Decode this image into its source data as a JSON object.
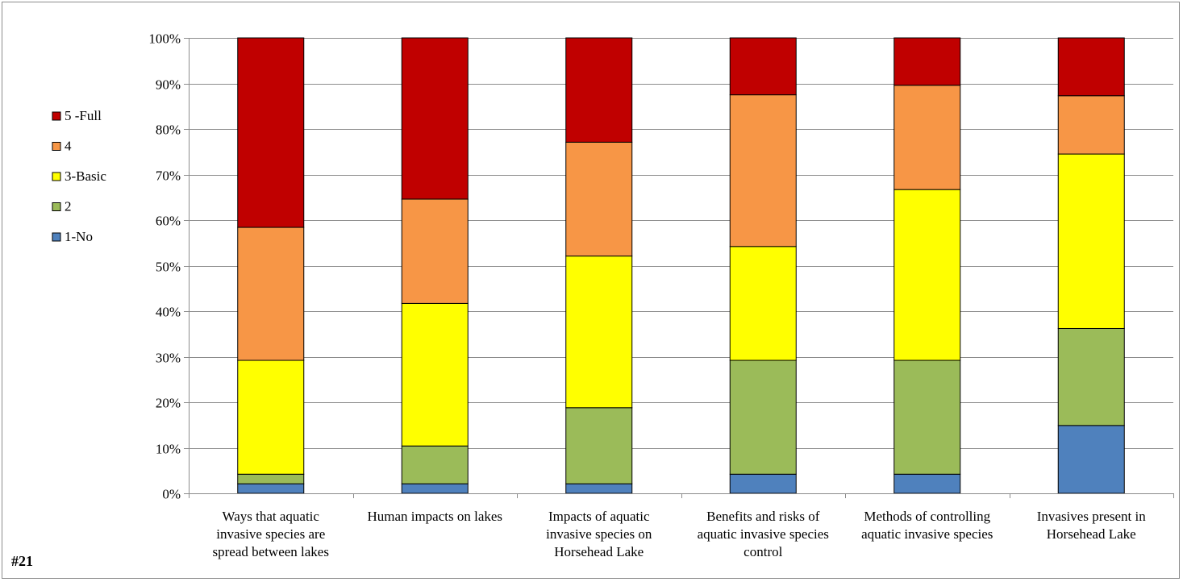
{
  "figure_number": "#21",
  "chart_data": {
    "type": "bar",
    "stacked": true,
    "percent_stacked": true,
    "categories": [
      [
        "Ways that aquatic",
        "invasive species are",
        "spread between lakes"
      ],
      [
        "Human impacts on lakes"
      ],
      [
        "Impacts of aquatic",
        "invasive species on",
        "Horsehead Lake"
      ],
      [
        "Benefits and risks of",
        "aquatic invasive species",
        "control"
      ],
      [
        "Methods of controlling",
        "aquatic invasive species"
      ],
      [
        "Invasives present in",
        "Horsehead Lake"
      ]
    ],
    "series": [
      {
        "name": "1-No",
        "color": "#4f81bd",
        "values": [
          2.1,
          2.1,
          2.1,
          4.2,
          4.2,
          14.9
        ]
      },
      {
        "name": "2",
        "color": "#9bbb59",
        "values": [
          2.1,
          8.3,
          16.7,
          25.0,
          25.0,
          21.3
        ]
      },
      {
        "name": "3-Basic",
        "color": "#ffff00",
        "values": [
          25.0,
          31.3,
          33.3,
          25.0,
          37.5,
          38.3
        ]
      },
      {
        "name": "4",
        "color": "#f79646",
        "values": [
          29.2,
          22.9,
          25.0,
          33.3,
          22.9,
          12.8
        ]
      },
      {
        "name": "5 -Full",
        "color": "#c00000",
        "values": [
          41.6,
          35.4,
          22.9,
          12.5,
          10.4,
          12.7
        ]
      }
    ],
    "yticks": [
      "0%",
      "10%",
      "20%",
      "30%",
      "40%",
      "50%",
      "60%",
      "70%",
      "80%",
      "90%",
      "100%"
    ],
    "ylim": [
      0,
      100
    ],
    "grid": true,
    "legend_position": "left",
    "title": "",
    "xlabel": "",
    "ylabel": ""
  }
}
